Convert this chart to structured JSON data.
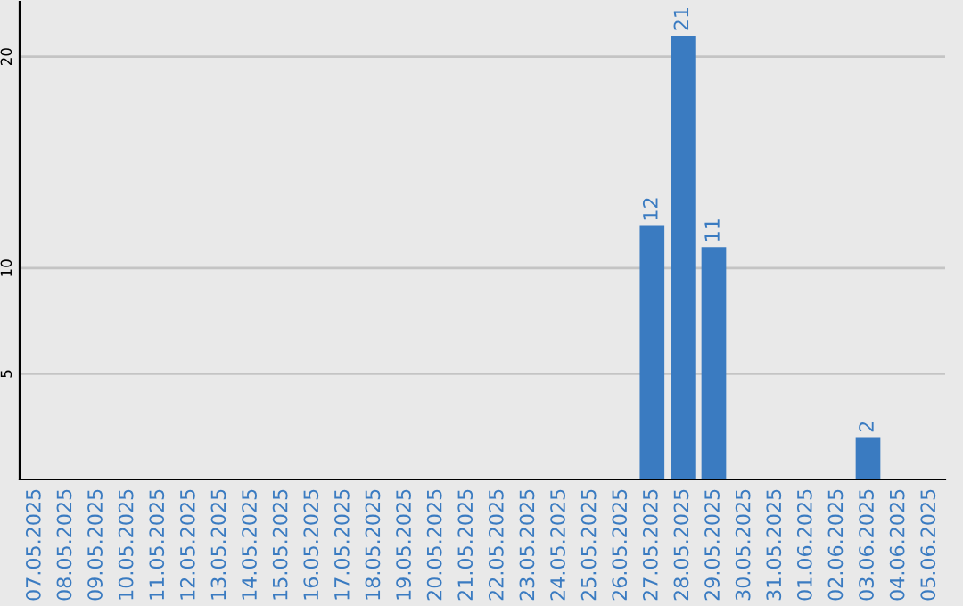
{
  "chart_data": {
    "type": "bar",
    "categories": [
      "07.05.2025",
      "08.05.2025",
      "09.05.2025",
      "10.05.2025",
      "11.05.2025",
      "12.05.2025",
      "13.05.2025",
      "14.05.2025",
      "15.05.2025",
      "16.05.2025",
      "17.05.2025",
      "18.05.2025",
      "19.05.2025",
      "20.05.2025",
      "21.05.2025",
      "22.05.2025",
      "23.05.2025",
      "24.05.2025",
      "25.05.2025",
      "26.05.2025",
      "27.05.2025",
      "28.05.2025",
      "29.05.2025",
      "30.05.2025",
      "31.05.2025",
      "01.06.2025",
      "02.06.2025",
      "03.06.2025",
      "04.06.2025",
      "05.06.2025"
    ],
    "values": [
      0,
      0,
      0,
      0,
      0,
      0,
      0,
      0,
      0,
      0,
      0,
      0,
      0,
      0,
      0,
      0,
      0,
      0,
      0,
      0,
      12,
      21,
      11,
      0,
      0,
      0,
      0,
      2,
      0,
      0
    ],
    "value_labels": [
      null,
      null,
      null,
      null,
      null,
      null,
      null,
      null,
      null,
      null,
      null,
      null,
      null,
      null,
      null,
      null,
      null,
      null,
      null,
      null,
      "12",
      "21",
      "11",
      null,
      null,
      null,
      null,
      "2",
      null,
      null
    ],
    "color": "#3a7bc1",
    "ylim": [
      0,
      22.6
    ],
    "yticks": [
      5,
      10,
      20
    ],
    "grid": "y"
  }
}
